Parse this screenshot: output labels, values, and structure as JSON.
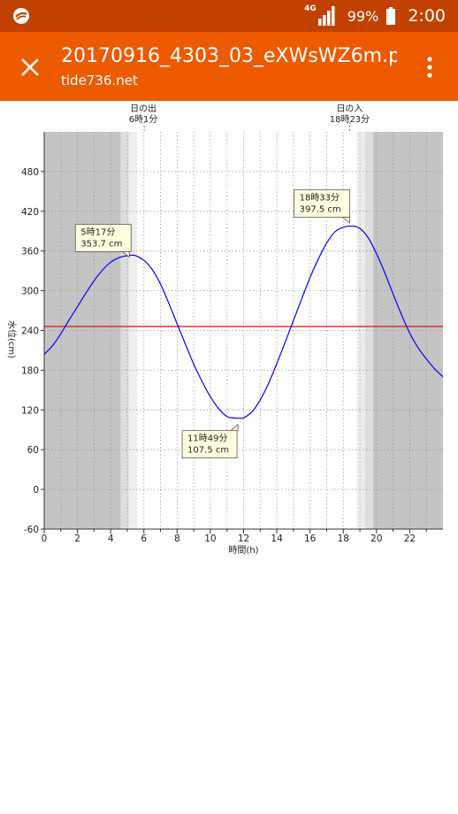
{
  "status_bar": {
    "network": "4G",
    "battery": "99%",
    "time": "2:00",
    "icons": [
      "app-logo-icon",
      "signal-icon",
      "battery-icon"
    ]
  },
  "app_bar": {
    "title": "20170916_4303_03_eXWsWZ6m.p...",
    "subtitle": "tide736.net",
    "icons": [
      "close-icon",
      "more-vert-icon"
    ]
  },
  "colors": {
    "status_bar": "#c24100",
    "app_bar": "#ee5a00",
    "tide_line": "#0000ff",
    "mean_line": "#ff0000",
    "night_shade": "#c4c4c4",
    "twilight_shade": "#dedede",
    "dawn_shade": "#eeeeee"
  },
  "chart_data": {
    "type": "line",
    "xlabel": "時間(h)",
    "ylabel": "水位(cm)",
    "xlim": [
      0,
      24
    ],
    "ylim": [
      -60,
      540
    ],
    "xticks": [
      0,
      2,
      4,
      6,
      8,
      10,
      12,
      14,
      16,
      18,
      20,
      22
    ],
    "yticks": [
      -60,
      0,
      60,
      120,
      180,
      240,
      300,
      360,
      420,
      480
    ],
    "grid": true,
    "mean_level": 246,
    "series": [
      {
        "x": [
          0,
          0.5,
          1,
          1.5,
          2,
          2.5,
          3,
          3.5,
          4,
          4.5,
          5,
          5.283,
          5.5,
          6,
          6.5,
          7,
          7.5,
          8,
          8.5,
          9,
          9.5,
          10,
          10.5,
          11,
          11.5,
          11.817,
          12,
          12.5,
          13,
          13.5,
          14,
          14.5,
          15,
          15.5,
          16,
          16.5,
          17,
          17.5,
          18,
          18.55,
          19,
          19.5,
          20,
          20.5,
          21,
          21.5,
          22,
          22.5,
          23,
          23.5,
          24
        ],
        "y": [
          204,
          217,
          235,
          256,
          276,
          296,
          315,
          331,
          343,
          350,
          353,
          353.7,
          353,
          346,
          332,
          310,
          281,
          250,
          219,
          189,
          163,
          140,
          122,
          110,
          107.7,
          107.5,
          108,
          117,
          135,
          160,
          190,
          222,
          255,
          288,
          320,
          348,
          372,
          389,
          396,
          397.5,
          394,
          380,
          356,
          327,
          295,
          264,
          236,
          214,
          197,
          182,
          170
        ]
      }
    ],
    "annotations": [
      {
        "x": 5.283,
        "y": 353.7,
        "time": "5時17分",
        "value": "353.7 cm"
      },
      {
        "x": 11.817,
        "y": 107.5,
        "time": "11時49分",
        "value": "107.5 cm"
      },
      {
        "x": 18.55,
        "y": 397.5,
        "time": "18時33分",
        "value": "397.5 cm"
      }
    ],
    "sun": {
      "sunrise_label": "日の出",
      "sunrise_time": "6時1分",
      "sunrise_hour": 6.017,
      "sunset_label": "日の入",
      "sunset_time": "18時23分",
      "sunset_hour": 18.383
    },
    "shading": [
      {
        "from": 0,
        "to": 4.6,
        "level": "night"
      },
      {
        "from": 4.6,
        "to": 5.1,
        "level": "twilight"
      },
      {
        "from": 5.1,
        "to": 5.6,
        "level": "dawn"
      },
      {
        "from": 18.8,
        "to": 19.3,
        "level": "dawn"
      },
      {
        "from": 19.3,
        "to": 19.8,
        "level": "twilight"
      },
      {
        "from": 19.8,
        "to": 24,
        "level": "night"
      }
    ]
  }
}
